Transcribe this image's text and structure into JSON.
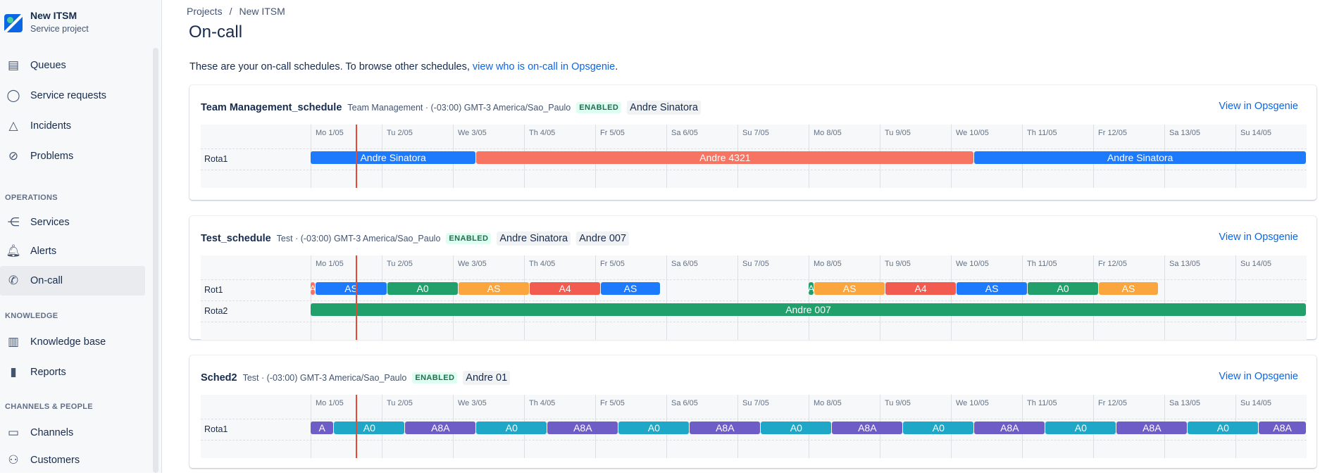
{
  "project": {
    "name": "New ITSM",
    "type": "Service project"
  },
  "sidebar": {
    "items": [
      {
        "label": "Queues",
        "icon": "queues-icon"
      },
      {
        "label": "Service requests",
        "icon": "chat-icon"
      },
      {
        "label": "Incidents",
        "icon": "warning-icon"
      },
      {
        "label": "Problems",
        "icon": "blocked-icon"
      }
    ],
    "sections": [
      {
        "title": "OPERATIONS",
        "items": [
          {
            "label": "Services",
            "icon": "services-icon"
          },
          {
            "label": "Alerts",
            "icon": "bell-icon"
          },
          {
            "label": "On-call",
            "icon": "phone-icon",
            "active": true
          }
        ]
      },
      {
        "title": "KNOWLEDGE",
        "items": [
          {
            "label": "Knowledge base",
            "icon": "book-icon"
          },
          {
            "label": "Reports",
            "icon": "chart-icon"
          }
        ]
      },
      {
        "title": "CHANNELS & PEOPLE",
        "items": [
          {
            "label": "Channels",
            "icon": "monitor-icon"
          },
          {
            "label": "Customers",
            "icon": "people-icon"
          }
        ]
      }
    ]
  },
  "breadcrumb": {
    "items": [
      "Projects",
      "New ITSM"
    ],
    "separator": "/"
  },
  "page": {
    "title": "On-call",
    "intro_text": "These are your on-call schedules. To browse other schedules, ",
    "intro_link": "view who is on-call in Opsgenie",
    "intro_end": "."
  },
  "days": [
    "Mo 1/05",
    "Tu 2/05",
    "We 3/05",
    "Th 4/05",
    "Fr 5/05",
    "Sa 6/05",
    "Su 7/05",
    "Mo 8/05",
    "Tu 9/05",
    "We 10/05",
    "Th 11/05",
    "Fr 12/05",
    "Sa 13/05",
    "Su 14/05"
  ],
  "now_day_fraction": 0.63,
  "colors": {
    "blue": "#1d7afc",
    "orange": "#f87462",
    "green": "#22a06b",
    "amber": "#faa53d",
    "purple": "#6e5dc6",
    "teal": "#1fa7c8",
    "red": "#f15b50",
    "link": "#0c66e4"
  },
  "schedules": [
    {
      "name": "Team Management_schedule",
      "meta": "Team Management · (-03:00) GMT-3 America/Sao_Paulo",
      "status": "ENABLED",
      "people": [
        "Andre Sinatora"
      ],
      "view_link": "View in Opsgenie",
      "rotations": [
        {
          "name": "Rota1",
          "shifts": [
            {
              "label": "Andre Sinatora",
              "start": 0,
              "end": 2.33,
              "color": "blue"
            },
            {
              "label": "Andre 4321",
              "start": 2.33,
              "end": 9.33,
              "color": "orange"
            },
            {
              "label": "Andre Sinatora",
              "start": 9.33,
              "end": 14,
              "color": "blue"
            }
          ]
        }
      ]
    },
    {
      "name": "Test_schedule",
      "meta": "Test · (-03:00) GMT-3 America/Sao_Paulo",
      "status": "ENABLED",
      "people": [
        "Andre Sinatora",
        "Andre 007"
      ],
      "view_link": "View in Opsgenie",
      "rotations": [
        {
          "name": "Rot1",
          "shifts": [
            {
              "label": "A",
              "start": 0,
              "end": 0.07,
              "color": "orange"
            },
            {
              "label": "AS",
              "start": 0.07,
              "end": 1.08,
              "color": "blue"
            },
            {
              "label": "A0",
              "start": 1.08,
              "end": 2.08,
              "color": "green"
            },
            {
              "label": "AS",
              "start": 2.08,
              "end": 3.08,
              "color": "amber"
            },
            {
              "label": "A4",
              "start": 3.08,
              "end": 4.08,
              "color": "red"
            },
            {
              "label": "AS",
              "start": 4.08,
              "end": 4.92,
              "color": "blue"
            },
            {
              "label": "A",
              "start": 7.0,
              "end": 7.08,
              "color": "green"
            },
            {
              "label": "AS",
              "start": 7.08,
              "end": 8.08,
              "color": "amber"
            },
            {
              "label": "A4",
              "start": 8.08,
              "end": 9.08,
              "color": "red"
            },
            {
              "label": "AS",
              "start": 9.08,
              "end": 10.08,
              "color": "blue"
            },
            {
              "label": "A0",
              "start": 10.08,
              "end": 11.08,
              "color": "green"
            },
            {
              "label": "AS",
              "start": 11.08,
              "end": 11.92,
              "color": "amber"
            }
          ]
        },
        {
          "name": "Rota2",
          "shifts": [
            {
              "label": "Andre 007",
              "start": 0,
              "end": 14,
              "color": "green"
            }
          ]
        }
      ]
    },
    {
      "name": "Sched2",
      "meta": "Test · (-03:00) GMT-3 America/Sao_Paulo",
      "status": "ENABLED",
      "people": [
        "Andre 01"
      ],
      "view_link": "View in Opsgenie",
      "rotations": [
        {
          "name": "Rota1",
          "shifts": [
            {
              "label": "A",
              "start": 0,
              "end": 0.33,
              "color": "purple"
            },
            {
              "label": "A0",
              "start": 0.33,
              "end": 1.33,
              "color": "teal"
            },
            {
              "label": "A8A",
              "start": 1.33,
              "end": 2.33,
              "color": "purple"
            },
            {
              "label": "A0",
              "start": 2.33,
              "end": 3.33,
              "color": "teal"
            },
            {
              "label": "A8A",
              "start": 3.33,
              "end": 4.33,
              "color": "purple"
            },
            {
              "label": "A0",
              "start": 4.33,
              "end": 5.33,
              "color": "teal"
            },
            {
              "label": "A8A",
              "start": 5.33,
              "end": 6.33,
              "color": "purple"
            },
            {
              "label": "A0",
              "start": 6.33,
              "end": 7.33,
              "color": "teal"
            },
            {
              "label": "A8A",
              "start": 7.33,
              "end": 8.33,
              "color": "purple"
            },
            {
              "label": "A0",
              "start": 8.33,
              "end": 9.33,
              "color": "teal"
            },
            {
              "label": "A8A",
              "start": 9.33,
              "end": 10.33,
              "color": "purple"
            },
            {
              "label": "A0",
              "start": 10.33,
              "end": 11.33,
              "color": "teal"
            },
            {
              "label": "A8A",
              "start": 11.33,
              "end": 12.33,
              "color": "purple"
            },
            {
              "label": "A0",
              "start": 12.33,
              "end": 13.33,
              "color": "teal"
            },
            {
              "label": "A8A",
              "start": 13.33,
              "end": 14,
              "color": "purple"
            }
          ]
        }
      ]
    }
  ]
}
